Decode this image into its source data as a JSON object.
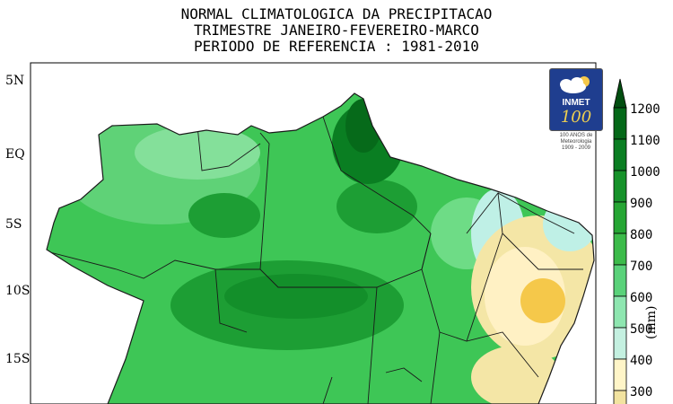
{
  "title": {
    "line1": "NORMAL CLIMATOLOGICA DA PRECIPITACAO",
    "line2": "TRIMESTRE JANEIRO-FEVEREIRO-MARCO",
    "line3": "PERIODO DE REFERENCIA : 1981-2010"
  },
  "latitude_labels": [
    "5N",
    "EQ",
    "5S",
    "10S",
    "15S"
  ],
  "colorbar": {
    "ticks": [
      "1200",
      "1100",
      "1000",
      "900",
      "800",
      "700",
      "600",
      "500",
      "400",
      "300"
    ],
    "unit": "(mm)",
    "colors": [
      "#f2e3a0",
      "#fff5c8",
      "#c4f0e0",
      "#8ee6b0",
      "#5ad27a",
      "#3cbb4a",
      "#26a634",
      "#16922a",
      "#0a7e22",
      "#046818",
      "#024e10"
    ]
  },
  "logo": {
    "text": "INMET",
    "number": "100",
    "caption_line1": "100 ANOS de",
    "caption_line2": "Meteorologia",
    "caption_line3": "1909 - 2009"
  },
  "map_colors": {
    "dry_max": "#d62a10",
    "dry_orange": "#f06a1a",
    "dry_yellow": "#f5c84a",
    "light_yellow": "#f4e6a6",
    "pale": "#fff1c4",
    "cyan": "#bff0e6",
    "light_green": "#6edc86",
    "green": "#3ec656",
    "mid_green": "#27ae3c",
    "dark_green": "#138f2a",
    "darkest_green": "#066a1a",
    "ocean": "#ffffff",
    "border": "#1a1a1a"
  }
}
